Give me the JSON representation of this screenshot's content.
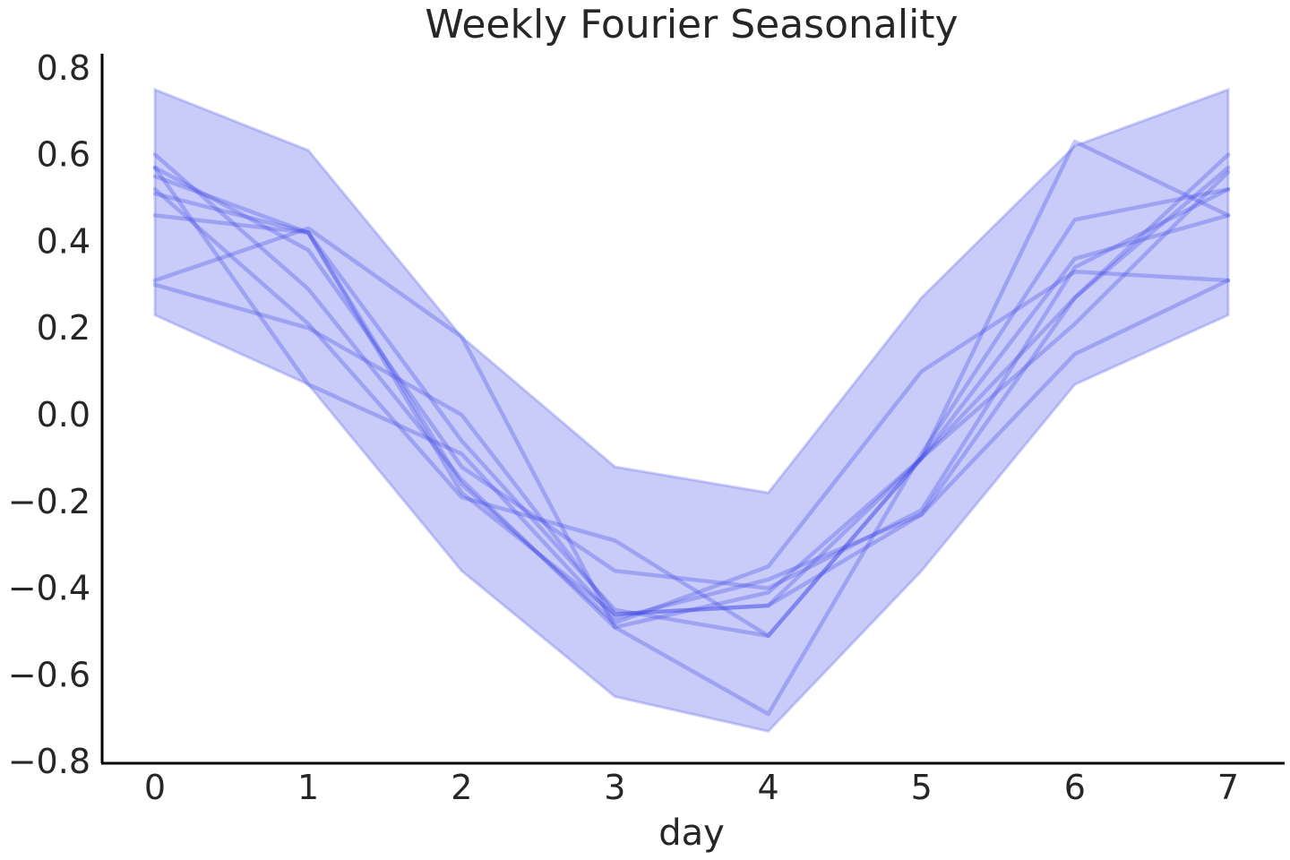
{
  "chart_data": {
    "type": "line",
    "title": "Weekly Fourier Seasonality",
    "xlabel": "day",
    "ylabel": "",
    "x": [
      0,
      1,
      2,
      3,
      4,
      5,
      6,
      7
    ],
    "xticks": [
      "0",
      "1",
      "2",
      "3",
      "4",
      "5",
      "6",
      "7"
    ],
    "yticks": [
      "0.8",
      "0.6",
      "0.4",
      "0.2",
      "0.0",
      "−0.2",
      "−0.4",
      "−0.6",
      "−0.8"
    ],
    "ytick_values": [
      0.8,
      0.6,
      0.4,
      0.2,
      0.0,
      -0.2,
      -0.4,
      -0.6,
      -0.8
    ],
    "xlim": [
      -0.35,
      7.35
    ],
    "ylim": [
      -0.8,
      0.82
    ],
    "grid": false,
    "legend": "none",
    "band": {
      "upper": [
        0.75,
        0.61,
        0.18,
        -0.12,
        -0.18,
        0.27,
        0.62,
        0.75
      ],
      "lower": [
        0.23,
        0.07,
        -0.36,
        -0.65,
        -0.73,
        -0.36,
        0.07,
        0.23
      ]
    },
    "series": [
      {
        "values": [
          0.6,
          0.29,
          -0.15,
          -0.49,
          -0.41,
          -0.1,
          0.36,
          0.46
        ]
      },
      {
        "values": [
          0.57,
          0.38,
          -0.12,
          -0.36,
          -0.4,
          -0.22,
          0.34,
          0.52
        ]
      },
      {
        "values": [
          0.55,
          0.42,
          -0.06,
          -0.45,
          -0.51,
          -0.1,
          0.27,
          0.6
        ]
      },
      {
        "values": [
          0.52,
          0.21,
          -0.19,
          -0.29,
          -0.51,
          -0.1,
          0.63,
          0.46
        ]
      },
      {
        "values": [
          0.46,
          0.42,
          -0.16,
          -0.48,
          -0.35,
          0.1,
          0.33,
          0.31
        ]
      },
      {
        "values": [
          0.31,
          0.43,
          0.18,
          -0.49,
          -0.69,
          -0.09,
          0.45,
          0.52
        ]
      },
      {
        "values": [
          0.3,
          0.2,
          0.0,
          -0.46,
          -0.44,
          -0.23,
          0.14,
          0.31
        ]
      },
      {
        "values": [
          0.57,
          0.07,
          -0.09,
          -0.47,
          -0.38,
          -0.23,
          0.27,
          0.57
        ]
      },
      {
        "values": [
          0.51,
          0.42,
          -0.18,
          -0.46,
          -0.44,
          -0.1,
          0.21,
          0.56
        ]
      }
    ],
    "colors": {
      "line": "#3c46e6",
      "band_fill": "#a5a8f5",
      "band_edge": "#6e73ef",
      "axis": "#000000",
      "text": "#262626"
    }
  }
}
